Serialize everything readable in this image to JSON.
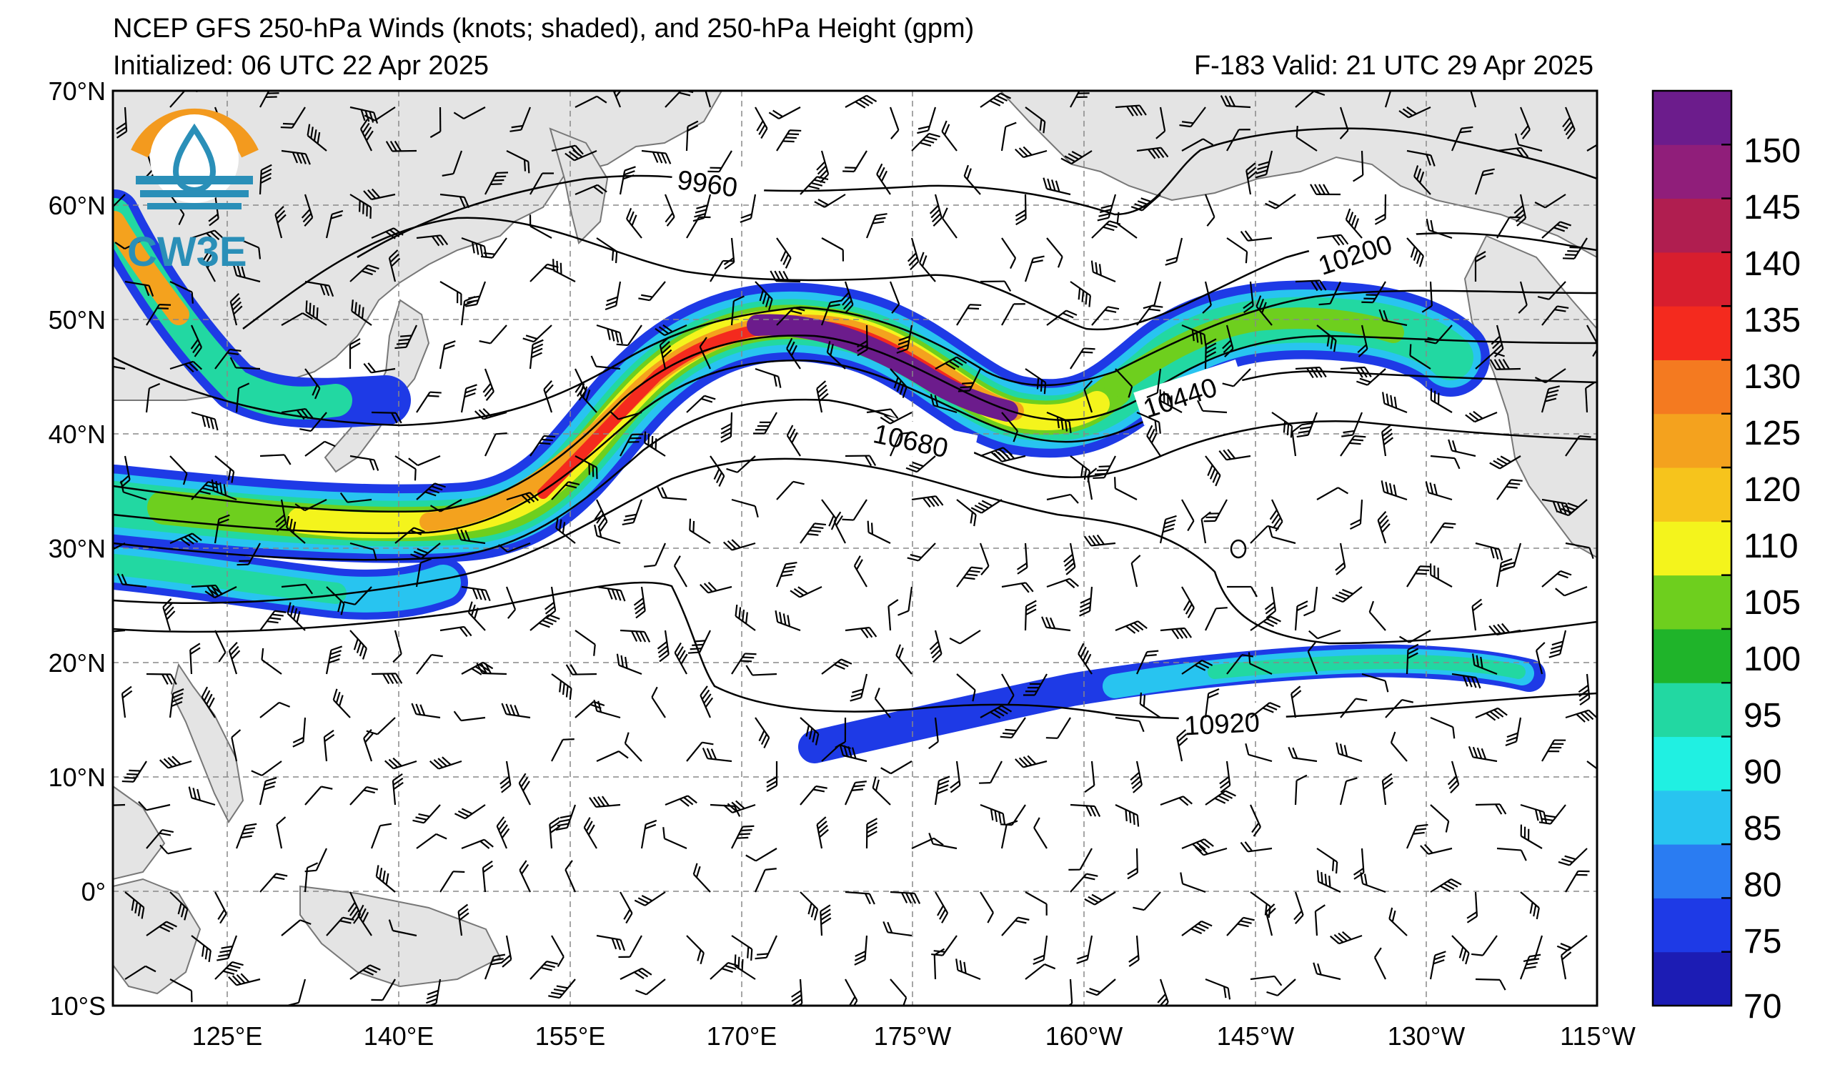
{
  "header": {
    "title": "NCEP GFS 250-hPa Winds (knots; shaded), and 250-hPa Height (gpm)",
    "initialized": "Initialized: 06 UTC 22 Apr 2025",
    "valid": "F-183  Valid: 21 UTC 29 Apr 2025"
  },
  "logo": {
    "text": "CW3E",
    "ring_color": "#f39a1e",
    "wave_color": "#2a8fb8",
    "text_color": "#2a8fb8"
  },
  "axes": {
    "lat_labels": [
      "70°N",
      "60°N",
      "50°N",
      "40°N",
      "30°N",
      "20°N",
      "10°N",
      "0°",
      "10°S"
    ],
    "lon_labels": [
      "125°E",
      "140°E",
      "155°E",
      "170°E",
      "175°W",
      "160°W",
      "145°W",
      "130°W",
      "115°W"
    ],
    "lat_range": [
      -10,
      70
    ],
    "lon_range_deg_east": [
      115,
      245
    ]
  },
  "contours": {
    "labels": [
      "9960",
      "10200",
      "10440",
      "10680",
      "10920"
    ]
  },
  "colorbar": {
    "labels": [
      "150",
      "145",
      "140",
      "135",
      "130",
      "125",
      "120",
      "110",
      "105",
      "100",
      "95",
      "90",
      "85",
      "80",
      "75",
      "70"
    ],
    "colors": [
      "#1c1cb4",
      "#1e3ae6",
      "#2a7cf2",
      "#28c4f0",
      "#20f0e2",
      "#22d8a2",
      "#1fb42a",
      "#6ecf1e",
      "#f4f41c",
      "#f6c41c",
      "#f4a21e",
      "#f47a20",
      "#f42a1e",
      "#d81e2e",
      "#b01e50",
      "#901e7a",
      "#6c1c8c"
    ],
    "color_order": "bottom-to-top"
  }
}
